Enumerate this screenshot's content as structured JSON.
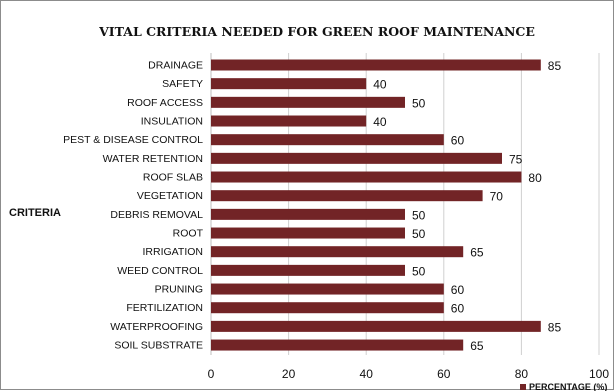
{
  "chart_data": {
    "type": "bar",
    "orientation": "horizontal",
    "title": "VITAL CRITERIA  NEEDED FOR GREEN ROOF MAINTENANCE",
    "ylabel": "CRITERIA",
    "xlabel": "",
    "xlim": [
      0,
      100
    ],
    "xticks": [
      0,
      20,
      40,
      60,
      80,
      100
    ],
    "grid": "vertical",
    "legend_position": "bottom-right",
    "bar_color": "#722426",
    "categories": [
      "DRAINAGE",
      "SAFETY",
      "ROOF ACCESS",
      "INSULATION",
      "PEST & DISEASE CONTROL",
      "WATER RETENTION",
      "ROOF SLAB",
      "VEGETATION",
      "DEBRIS REMOVAL",
      "ROOT",
      "IRRIGATION",
      "WEED CONTROL",
      "PRUNING",
      "FERTILIZATION",
      "WATERPROOFING",
      "SOIL SUBSTRATE"
    ],
    "series": [
      {
        "name": "PERCENTAGE (%)",
        "values": [
          85,
          40,
          50,
          40,
          60,
          75,
          80,
          70,
          50,
          50,
          65,
          50,
          60,
          60,
          85,
          65
        ]
      }
    ]
  }
}
